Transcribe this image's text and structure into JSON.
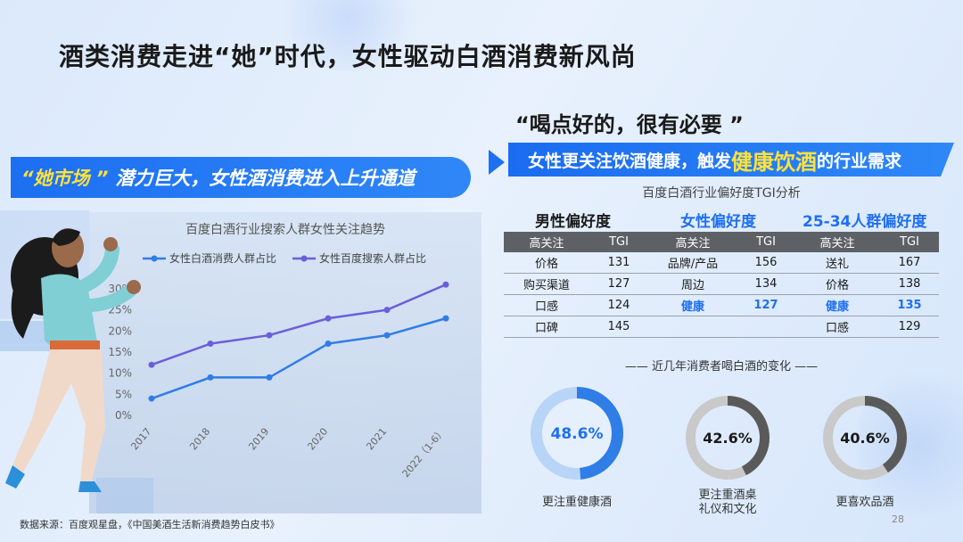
{
  "title": "酒类消费走进“她”时代，女性驱动白酒消费新风尚",
  "left_banner": {
    "highlight": "“她市场 ”",
    "text": "潜力巨大，女性酒消费进入上升通道"
  },
  "quote": "“喝点好的，很有必要 ”",
  "right_banner": {
    "text_before": "女性更关注饮酒健康，触发",
    "highlight": "健康饮酒",
    "text_after": "的行业需求"
  },
  "tgi_table": {
    "title": "百度白酒行业偏好度TGI分析",
    "groups": [
      "男性偏好度",
      "女性偏好度",
      "25-34人群偏好度"
    ],
    "col_headers": [
      "高关注",
      "TGI",
      "高关注",
      "TGI",
      "高关注",
      "TGI"
    ],
    "rows": [
      [
        "价格",
        "131",
        "品牌/产品",
        "156",
        "送礼",
        "167"
      ],
      [
        "购买渠道",
        "127",
        "周边",
        "134",
        "价格",
        "138"
      ],
      [
        "口感",
        "124",
        "健康",
        "127",
        "健康",
        "135"
      ],
      [
        "口碑",
        "145",
        "",
        "",
        "口感",
        "129"
      ]
    ]
  },
  "donut_section_title": "—— 近几年消费者喝白酒的变化 ——",
  "donuts": [
    {
      "value": 48.6,
      "label": "48.6%",
      "caption_lines": [
        "更注重健康酒"
      ],
      "fill": "#2f7de6",
      "track": "#b8d4f6",
      "text_color": "#1f6ff2"
    },
    {
      "value": 42.6,
      "label": "42.6%",
      "caption_lines": [
        "更注重酒桌",
        "礼仪和文化"
      ],
      "fill": "#5a5a5a",
      "track": "#c9c9c9",
      "text_color": "#1a1a1a"
    },
    {
      "value": 40.6,
      "label": "40.6%",
      "caption_lines": [
        "更喜欢品酒"
      ],
      "fill": "#5a5a5a",
      "track": "#c9c9c9",
      "text_color": "#1a1a1a"
    }
  ],
  "source": "数据来源：百度观星盘，《中国美酒生活新消费趋势白皮书》",
  "page_number": "28",
  "chart_data": {
    "type": "line",
    "title": "百度白酒行业搜索人群女性关注趋势",
    "x": [
      "2017",
      "2018",
      "2019",
      "2020",
      "2021",
      "2022（1-6）"
    ],
    "y_ticks": [
      "0%",
      "5%",
      "10%",
      "15%",
      "20%",
      "25%",
      "30%"
    ],
    "ylim": [
      0,
      30
    ],
    "legend_position": "top",
    "series": [
      {
        "name": "女性白酒消费人群占比",
        "color": "#2f7de6",
        "values": [
          4,
          9,
          9,
          17,
          19,
          23
        ]
      },
      {
        "name": "女性百度搜索人群占比",
        "color": "#6a5fd8",
        "values": [
          12,
          17,
          19,
          23,
          25,
          31
        ]
      }
    ]
  }
}
